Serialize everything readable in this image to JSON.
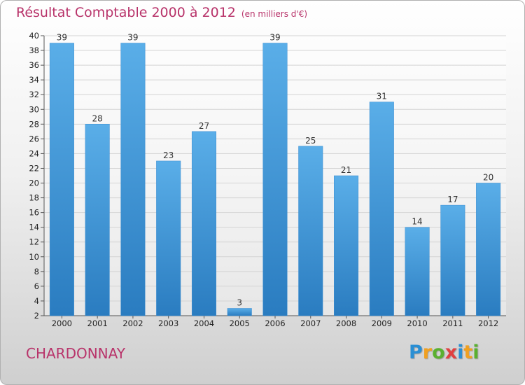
{
  "header": {
    "title": "Résultat Comptable 2000 à 2012",
    "unit": "(en milliers d'€)"
  },
  "footer": {
    "commune": "CHARDONNAY",
    "logo_letters": [
      {
        "ch": "P",
        "color": "#2a8fd4"
      },
      {
        "ch": "r",
        "color": "#f0a020"
      },
      {
        "ch": "o",
        "color": "#5ab030"
      },
      {
        "ch": "x",
        "color": "#e04040"
      },
      {
        "ch": "i",
        "color": "#2a8fd4"
      },
      {
        "ch": "t",
        "color": "#f0a020"
      },
      {
        "ch": "i",
        "color": "#5ab030"
      }
    ]
  },
  "chart_data": {
    "type": "bar",
    "title": "Résultat Comptable 2000 à 2012",
    "subtitle": "(en milliers d'€)",
    "categories": [
      "2000",
      "2001",
      "2002",
      "2003",
      "2004",
      "2005",
      "2006",
      "2007",
      "2008",
      "2009",
      "2010",
      "2011",
      "2012"
    ],
    "values": [
      39,
      28,
      39,
      23,
      27,
      3,
      39,
      25,
      21,
      31,
      14,
      17,
      20
    ],
    "ylim": [
      2,
      40
    ],
    "yticks": [
      2,
      4,
      6,
      8,
      10,
      12,
      14,
      16,
      18,
      20,
      22,
      24,
      26,
      28,
      30,
      32,
      34,
      36,
      38,
      40
    ],
    "grid": true,
    "bar_color": "#4a9fe0"
  }
}
